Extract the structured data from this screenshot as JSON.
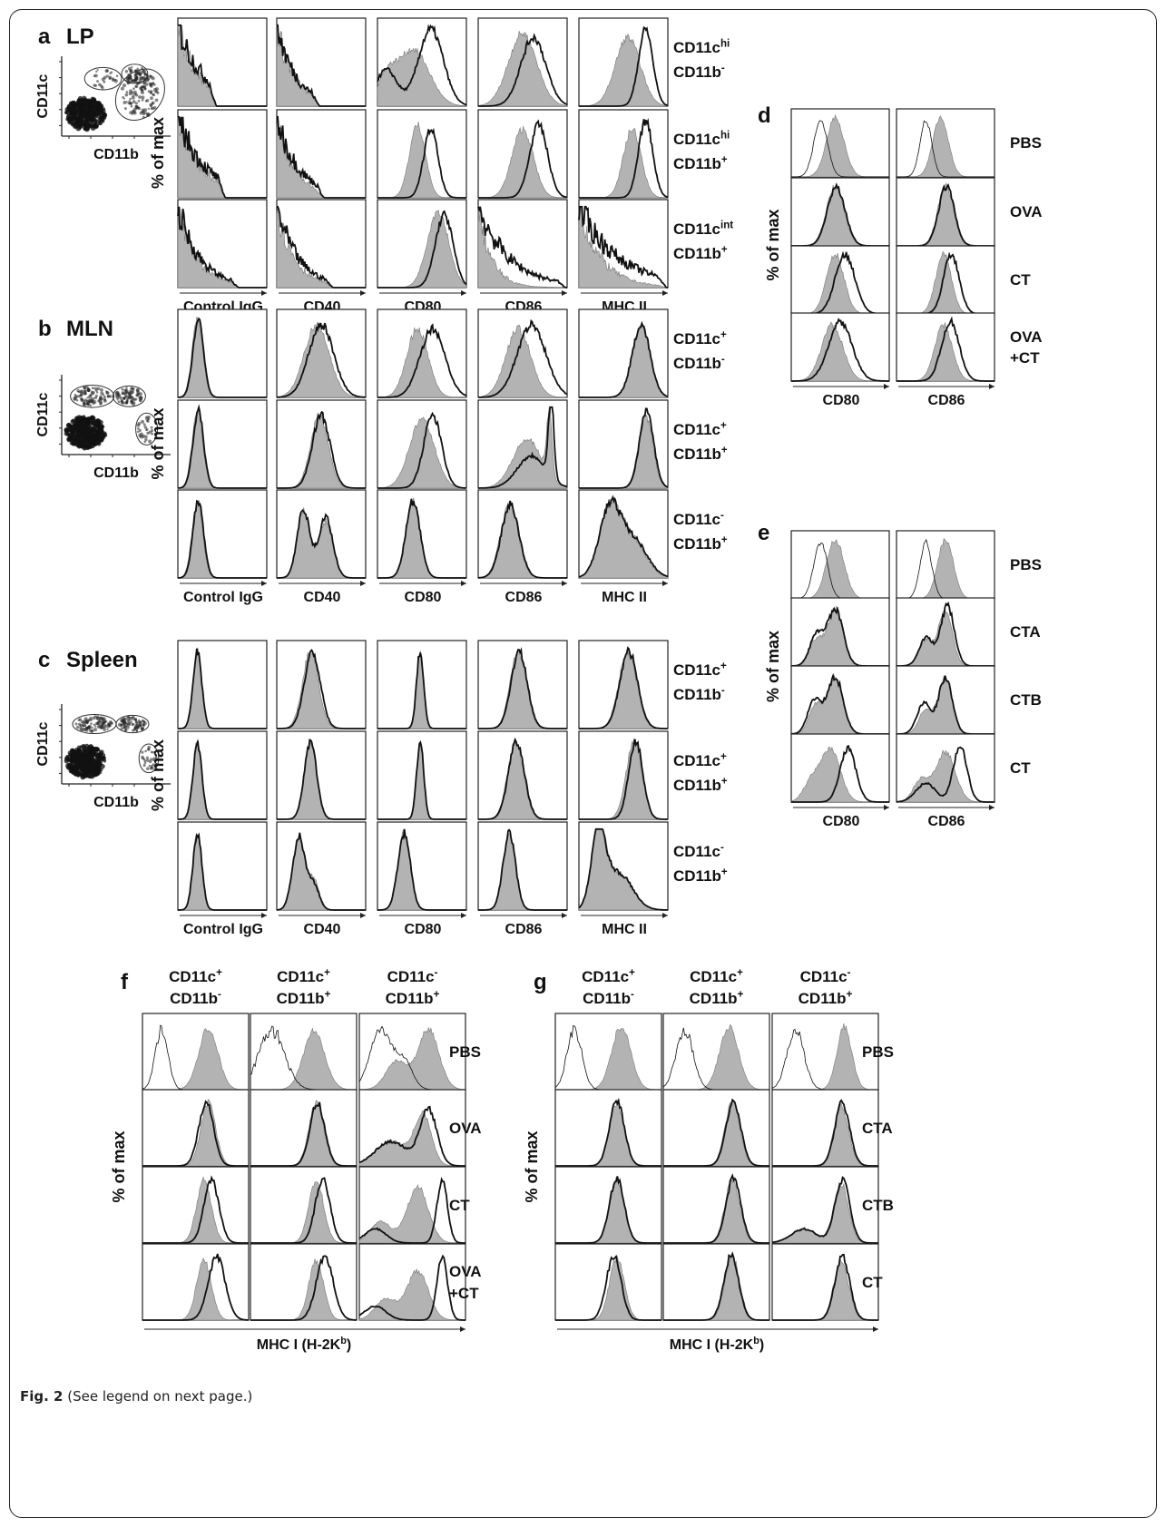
{
  "caption": {
    "label": "Fig. 2",
    "text": "(See legend on next page.)"
  },
  "y_axis_label": "% of max",
  "dot_axes": {
    "x": "CD11b",
    "y": "CD11c"
  },
  "markers": [
    "Control IgG",
    "CD40",
    "CD80",
    "CD86",
    "MHC II"
  ],
  "panels_abc": [
    {
      "letter": "a",
      "tissue": "LP",
      "rows": [
        {
          "l1": "CD11c",
          "s1": "hi",
          "l2": "CD11b",
          "s2": "-"
        },
        {
          "l1": "CD11c",
          "s1": "hi",
          "l2": "CD11b",
          "s2": "+"
        },
        {
          "l1": "CD11c",
          "s1": "int",
          "l2": "CD11b",
          "s2": "+"
        }
      ]
    },
    {
      "letter": "b",
      "tissue": "MLN",
      "rows": [
        {
          "l1": "CD11c",
          "s1": "+",
          "l2": "CD11b",
          "s2": "-"
        },
        {
          "l1": "CD11c",
          "s1": "+",
          "l2": "CD11b",
          "s2": "+"
        },
        {
          "l1": "CD11c",
          "s1": "-",
          "l2": "CD11b",
          "s2": "+"
        }
      ]
    },
    {
      "letter": "c",
      "tissue": "Spleen",
      "rows": [
        {
          "l1": "CD11c",
          "s1": "+",
          "l2": "CD11b",
          "s2": "-"
        },
        {
          "l1": "CD11c",
          "s1": "+",
          "l2": "CD11b",
          "s2": "+"
        },
        {
          "l1": "CD11c",
          "s1": "-",
          "l2": "CD11b",
          "s2": "+"
        }
      ]
    }
  ],
  "panels_de": [
    {
      "letter": "d",
      "markers": [
        "CD80",
        "CD86"
      ],
      "rows": [
        "PBS",
        "OVA",
        "CT",
        "OVA\n+CT"
      ]
    },
    {
      "letter": "e",
      "markers": [
        "CD80",
        "CD86"
      ],
      "rows": [
        "PBS",
        "CTA",
        "CTB",
        "CT"
      ]
    }
  ],
  "panels_fg": [
    {
      "letter": "f",
      "xlabel": "MHC I (H-2K",
      "xlabel_sup": "b",
      "xlabel_end": ")",
      "columns": [
        {
          "l1": "CD11c",
          "s1": "+",
          "l2": "CD11b",
          "s2": "-"
        },
        {
          "l1": "CD11c",
          "s1": "+",
          "l2": "CD11b",
          "s2": "+"
        },
        {
          "l1": "CD11c",
          "s1": "-",
          "l2": "CD11b",
          "s2": "+"
        }
      ],
      "rows": [
        "PBS",
        "OVA",
        "CT",
        "OVA\n+CT"
      ]
    },
    {
      "letter": "g",
      "xlabel": "MHC I (H-2K",
      "xlabel_sup": "b",
      "xlabel_end": ")",
      "columns": [
        {
          "l1": "CD11c",
          "s1": "+",
          "l2": "CD11b",
          "s2": "-"
        },
        {
          "l1": "CD11c",
          "s1": "+",
          "l2": "CD11b",
          "s2": "+"
        },
        {
          "l1": "CD11c",
          "s1": "-",
          "l2": "CD11b",
          "s2": "+"
        }
      ],
      "rows": [
        "PBS",
        "CTA",
        "CTB",
        "CT"
      ]
    }
  ],
  "colors": {
    "fill": "#b3b3b3",
    "line": "#111111",
    "frame": "#222222"
  }
}
